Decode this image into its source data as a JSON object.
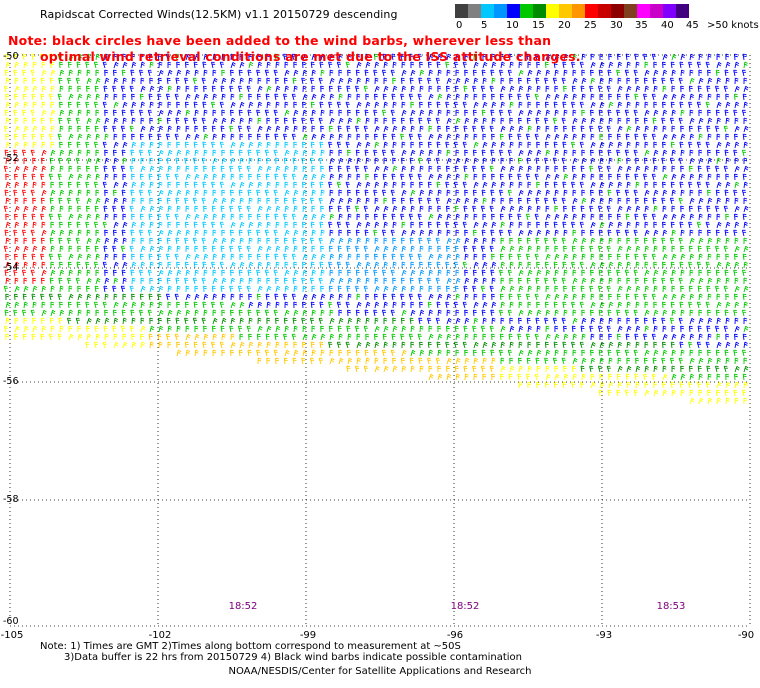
{
  "title": "Rapidscat Corrected Winds(12.5KM) v1.1 20150729 descending",
  "note_lines": [
    "Note: black circles have been added to the wind barbs, wherever less than",
    "optimal wind retrieval conditions are met due to the ISS attitude changes."
  ],
  "legend": {
    "colors": [
      "#404040",
      "#808080",
      "#00c8ff",
      "#0096ff",
      "#0000ff",
      "#00c800",
      "#008c00",
      "#ffff00",
      "#ffc800",
      "#ff9600",
      "#ff0000",
      "#c80000",
      "#8c0000",
      "#804020",
      "#ff00ff",
      "#c800c8",
      "#8000ff",
      "#400080"
    ],
    "labels": [
      "0",
      "5",
      "10",
      "15",
      "20",
      "25",
      "30",
      "35",
      "40",
      "45"
    ],
    "unit": ">50 knots"
  },
  "axes": {
    "lat_labels": [
      "-50",
      "-52",
      "-54",
      "-56",
      "-58",
      "-60"
    ],
    "lon_labels": [
      "-105",
      "-102",
      "-99",
      "-96",
      "-93",
      "-90"
    ]
  },
  "times": [
    "18:52",
    "18:52",
    "18:53"
  ],
  "footer": {
    "line1": "Note: 1) Times are GMT 2)Times along bottom correspond to measurement at ~50S",
    "line2": "3)Data buffer is 22 hrs from 20150729 4) Black wind barbs indicate possible contamination",
    "line3": "NOAA/NESDIS/Center for Satellite Applications and Research"
  }
}
